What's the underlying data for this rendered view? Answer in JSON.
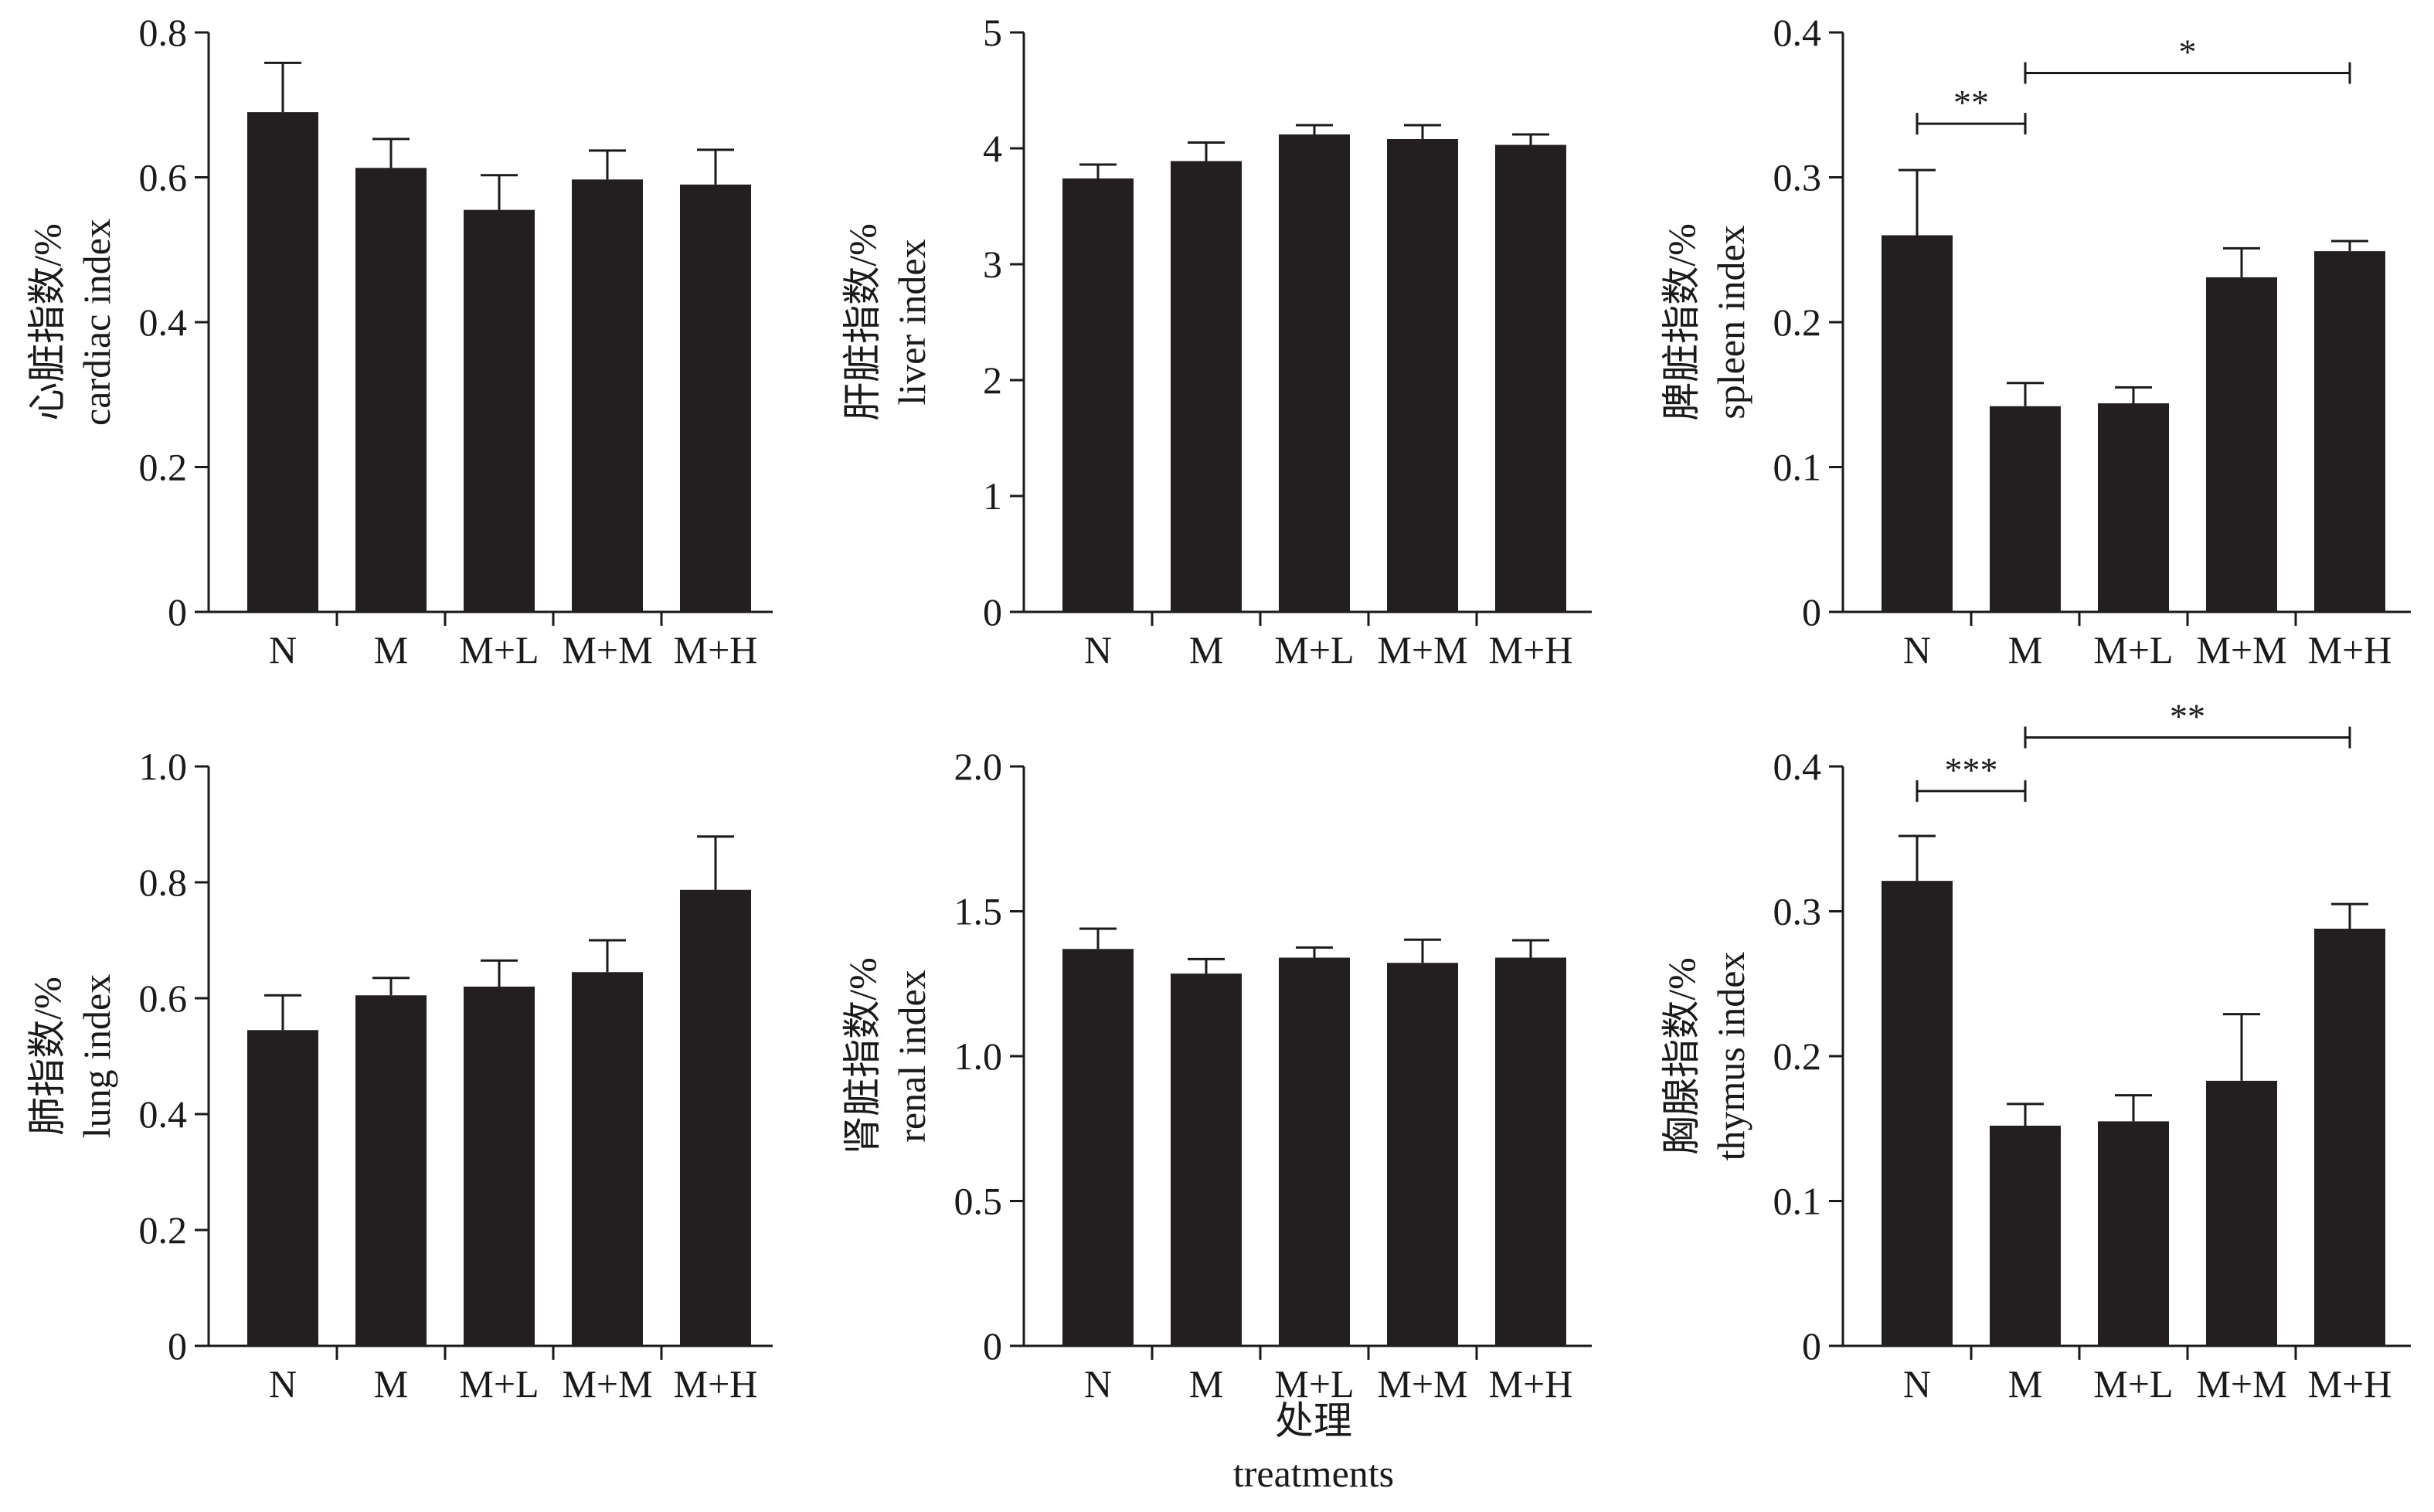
{
  "colors": {
    "bar": "#231f20",
    "axis": "#1a1a1a",
    "background": "#ffffff"
  },
  "chart_data": [
    {
      "type": "bar",
      "ylabel_cn": "心脏指数/%",
      "ylabel_en": "cardiac index",
      "categories": [
        "N",
        "M",
        "M+L",
        "M+M",
        "M+H"
      ],
      "values": [
        0.69,
        0.613,
        0.555,
        0.597,
        0.59
      ],
      "errors": [
        0.068,
        0.04,
        0.048,
        0.04,
        0.048
      ],
      "ylim": [
        0,
        0.8
      ],
      "yticks": [
        0,
        0.2,
        0.4,
        0.6,
        0.8
      ],
      "ytick_labels": [
        "0",
        "0.2",
        "0.4",
        "0.6",
        "0.8"
      ],
      "significance": []
    },
    {
      "type": "bar",
      "ylabel_cn": "肝脏指数/%",
      "ylabel_en": "liver index",
      "categories": [
        "N",
        "M",
        "M+L",
        "M+M",
        "M+H"
      ],
      "values": [
        3.74,
        3.89,
        4.12,
        4.08,
        4.03
      ],
      "errors": [
        0.12,
        0.16,
        0.08,
        0.12,
        0.09
      ],
      "ylim": [
        0,
        5
      ],
      "yticks": [
        0,
        1,
        2,
        3,
        4,
        5
      ],
      "ytick_labels": [
        "0",
        "1",
        "2",
        "3",
        "4",
        "5"
      ],
      "significance": []
    },
    {
      "type": "bar",
      "ylabel_cn": "脾脏指数/%",
      "ylabel_en": "spleen index",
      "categories": [
        "N",
        "M",
        "M+L",
        "M+M",
        "M+H"
      ],
      "values": [
        0.26,
        0.142,
        0.144,
        0.231,
        0.249
      ],
      "errors": [
        0.045,
        0.016,
        0.011,
        0.02,
        0.007
      ],
      "ylim": [
        0,
        0.4
      ],
      "yticks": [
        0,
        0.1,
        0.2,
        0.3,
        0.4
      ],
      "ytick_labels": [
        "0",
        "0.1",
        "0.2",
        "0.3",
        "0.4"
      ],
      "significance": [
        {
          "from": 0,
          "to": 1,
          "level": 0.337,
          "label": "**"
        },
        {
          "from": 1,
          "to": 4,
          "level": 0.372,
          "label": "*"
        }
      ]
    },
    {
      "type": "bar",
      "ylabel_cn": "肺指数/%",
      "ylabel_en": "lung index",
      "categories": [
        "N",
        "M",
        "M+L",
        "M+M",
        "M+H"
      ],
      "values": [
        0.545,
        0.605,
        0.62,
        0.645,
        0.787
      ],
      "errors": [
        0.06,
        0.03,
        0.045,
        0.055,
        0.092
      ],
      "ylim": [
        0,
        1.0
      ],
      "yticks": [
        0,
        0.2,
        0.4,
        0.6,
        0.8,
        1.0
      ],
      "ytick_labels": [
        "0",
        "0.2",
        "0.4",
        "0.6",
        "0.8",
        "1.0"
      ],
      "significance": []
    },
    {
      "type": "bar",
      "ylabel_cn": "肾脏指数/%",
      "ylabel_en": "renal index",
      "categories": [
        "N",
        "M",
        "M+L",
        "M+M",
        "M+H"
      ],
      "values": [
        1.37,
        1.285,
        1.34,
        1.322,
        1.34
      ],
      "errors": [
        0.07,
        0.05,
        0.035,
        0.08,
        0.06
      ],
      "ylim": [
        0,
        2.0
      ],
      "yticks": [
        0,
        0.5,
        1.0,
        1.5,
        2.0
      ],
      "ytick_labels": [
        "0",
        "0.5",
        "1.0",
        "1.5",
        "2.0"
      ],
      "significance": []
    },
    {
      "type": "bar",
      "ylabel_cn": "胸腺指数/%",
      "ylabel_en": "thymus index",
      "categories": [
        "N",
        "M",
        "M+L",
        "M+M",
        "M+H"
      ],
      "values": [
        0.321,
        0.152,
        0.155,
        0.183,
        0.288
      ],
      "errors": [
        0.031,
        0.015,
        0.018,
        0.046,
        0.017
      ],
      "ylim": [
        0,
        0.4
      ],
      "yticks": [
        0,
        0.1,
        0.2,
        0.3,
        0.4
      ],
      "ytick_labels": [
        "0",
        "0.1",
        "0.2",
        "0.3",
        "0.4"
      ],
      "significance": [
        {
          "from": 0,
          "to": 1,
          "level": 0.383,
          "label": "***"
        },
        {
          "from": 1,
          "to": 4,
          "level": 0.42,
          "label": "**"
        }
      ]
    }
  ],
  "xtitle_cn": "处理",
  "xtitle_en": "treatments"
}
